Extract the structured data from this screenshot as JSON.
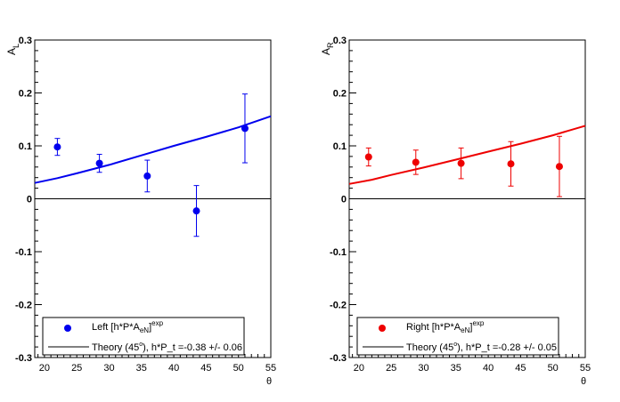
{
  "chart_data": [
    {
      "type": "scatter",
      "ylabel_main": "A",
      "ylabel_sub": "L",
      "xlabel": "θ",
      "xlim": [
        18.5,
        55
      ],
      "ylim": [
        -0.3,
        0.3
      ],
      "xticks": [
        20,
        25,
        30,
        35,
        40,
        45,
        50,
        55
      ],
      "yticks": [
        -0.3,
        -0.2,
        -0.1,
        0,
        0.1,
        0.2,
        0.3
      ],
      "ytick_labels": [
        "-0.3",
        "-0.2",
        "-0.1",
        "0",
        "0.1",
        "0.2",
        "0.3"
      ],
      "zero_line": true,
      "grid": false,
      "color": "#0000ee",
      "points": [
        {
          "x": 22.0,
          "y": 0.098,
          "err": 0.016
        },
        {
          "x": 28.5,
          "y": 0.067,
          "err": 0.017
        },
        {
          "x": 35.9,
          "y": 0.043,
          "err": 0.03
        },
        {
          "x": 43.5,
          "y": -0.023,
          "err": 0.048
        },
        {
          "x": 51.0,
          "y": 0.133,
          "err": 0.065
        }
      ],
      "theory": {
        "x": [
          18.5,
          22,
          25,
          30,
          35,
          40,
          45,
          50,
          55
        ],
        "y": [
          0.03,
          0.039,
          0.048,
          0.064,
          0.082,
          0.1,
          0.117,
          0.135,
          0.156
        ]
      },
      "legend": {
        "position": "bottom-left",
        "data_label": "Left [h*P*A",
        "data_sub": "eN",
        "data_close": "]",
        "data_sup": "exp",
        "theory_label": "Theory (45",
        "theory_deg": "o",
        "theory_rest": "), h*P_t =-0.38 +/- 0.06"
      }
    },
    {
      "type": "scatter",
      "ylabel_main": "A",
      "ylabel_sub": "R",
      "xlabel": "θ",
      "xlim": [
        18.5,
        55
      ],
      "ylim": [
        -0.3,
        0.3
      ],
      "xticks": [
        20,
        25,
        30,
        35,
        40,
        45,
        50,
        55
      ],
      "yticks": [
        -0.3,
        -0.2,
        -0.1,
        0,
        0.1,
        0.2,
        0.3
      ],
      "ytick_labels": [
        "-0.3",
        "-0.2",
        "-0.1",
        "0",
        "0.1",
        "0.2",
        "0.3"
      ],
      "zero_line": true,
      "grid": false,
      "color": "#ee0000",
      "points": [
        {
          "x": 21.5,
          "y": 0.079,
          "err": 0.017
        },
        {
          "x": 28.8,
          "y": 0.069,
          "err": 0.023
        },
        {
          "x": 35.8,
          "y": 0.067,
          "err": 0.029
        },
        {
          "x": 43.5,
          "y": 0.066,
          "err": 0.042
        },
        {
          "x": 51.0,
          "y": 0.061,
          "err": 0.057
        }
      ],
      "theory": {
        "x": [
          18.5,
          22,
          25,
          30,
          35,
          40,
          45,
          50,
          55
        ],
        "y": [
          0.028,
          0.036,
          0.045,
          0.059,
          0.074,
          0.089,
          0.104,
          0.12,
          0.138
        ]
      },
      "legend": {
        "position": "bottom-left",
        "data_label": "Right [h*P*A",
        "data_sub": "eN",
        "data_close": "]",
        "data_sup": "exp",
        "theory_label": "Theory (45",
        "theory_deg": "o",
        "theory_rest": "), h*P_t =-0.28 +/- 0.05"
      }
    }
  ]
}
